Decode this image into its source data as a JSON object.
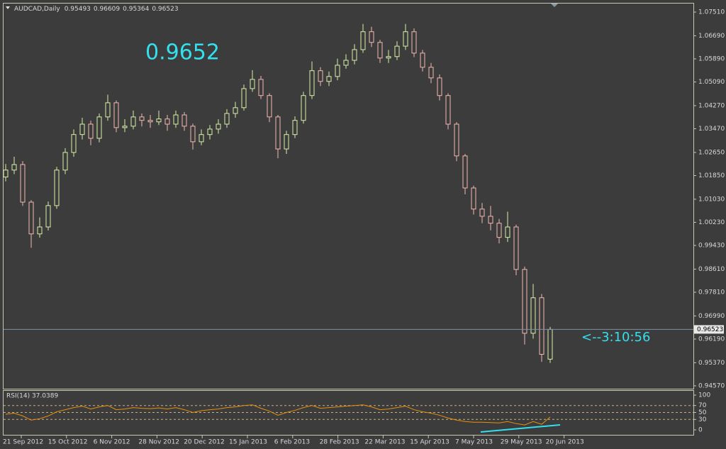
{
  "chart_data": {
    "type": "candlestick",
    "title": "AUDCAD,Daily",
    "open": [
      1.018,
      1.0204,
      1.0223,
      1.0093,
      0.9983,
      1.0007,
      1.0081,
      1.0204,
      1.0265,
      1.0327,
      1.0363,
      1.0314,
      1.0388,
      1.0437,
      1.0351,
      1.0356,
      1.0388,
      1.0376,
      1.0371,
      1.0381,
      1.0363,
      1.0395,
      1.0356,
      1.0302,
      1.0327,
      1.0346,
      1.0363,
      1.04,
      1.042,
      1.0486,
      1.0518,
      1.0462,
      1.0388,
      1.0277,
      1.0327,
      1.0376,
      1.0462,
      1.0548,
      1.0511,
      1.0528,
      1.0567,
      1.0584,
      1.0621,
      1.0683,
      1.0646,
      1.0592,
      1.0597,
      1.0633,
      1.0683,
      1.0609,
      1.056,
      1.0523,
      1.0462,
      1.0363,
      1.0253,
      1.0142,
      1.0069,
      1.0044,
      1.002,
      0.9971,
      1.0007,
      0.986,
      0.9639,
      0.9762,
      0.95493
    ],
    "high": [
      1.0225,
      1.025,
      1.0235,
      1.01,
      1.004,
      1.0095,
      1.0215,
      1.028,
      1.0345,
      1.0385,
      1.0375,
      1.04,
      1.0465,
      1.0445,
      1.038,
      1.041,
      1.04,
      1.0395,
      1.041,
      1.0395,
      1.041,
      1.0405,
      1.0365,
      1.0345,
      1.036,
      1.038,
      1.0415,
      1.044,
      1.05,
      1.055,
      1.053,
      1.047,
      1.0395,
      1.034,
      1.039,
      1.0475,
      1.058,
      1.056,
      1.0545,
      1.059,
      1.0605,
      1.064,
      1.071,
      1.07,
      1.0655,
      1.062,
      1.065,
      1.071,
      1.0695,
      1.062,
      1.0575,
      1.0535,
      1.047,
      1.037,
      1.026,
      1.015,
      1.009,
      1.008,
      1.0035,
      1.006,
      1.0015,
      0.987,
      0.981,
      0.9775,
      0.96609
    ],
    "low": [
      1.0165,
      1.019,
      1.008,
      0.9935,
      0.997,
      0.9995,
      1.007,
      1.019,
      1.025,
      1.031,
      1.029,
      1.03,
      1.0375,
      1.0335,
      1.0335,
      1.0345,
      1.0355,
      1.035,
      1.036,
      1.034,
      1.035,
      1.034,
      1.0275,
      1.029,
      1.031,
      1.033,
      1.035,
      1.0385,
      1.041,
      1.0475,
      1.045,
      1.037,
      1.0245,
      1.026,
      1.0315,
      1.0365,
      1.045,
      1.0495,
      1.0495,
      1.0515,
      1.0555,
      1.057,
      1.061,
      1.063,
      1.0575,
      1.0575,
      1.0585,
      1.062,
      1.0595,
      1.0545,
      1.0505,
      1.0445,
      1.0345,
      1.0235,
      1.012,
      1.005,
      1.002,
      0.9995,
      0.995,
      0.9955,
      0.984,
      0.96,
      0.962,
      0.954,
      0.95364
    ],
    "close": [
      1.0204,
      1.0223,
      1.0093,
      0.9983,
      1.0007,
      1.0081,
      1.0204,
      1.0265,
      1.0327,
      1.0363,
      1.0314,
      1.0388,
      1.0437,
      1.0351,
      1.0356,
      1.0388,
      1.0376,
      1.0371,
      1.0381,
      1.0363,
      1.0395,
      1.0356,
      1.0302,
      1.0327,
      1.0346,
      1.0363,
      1.04,
      1.042,
      1.0486,
      1.0518,
      1.0462,
      1.0388,
      1.0277,
      1.0327,
      1.0376,
      1.0462,
      1.0548,
      1.0511,
      1.0528,
      1.0567,
      1.0584,
      1.0621,
      1.0683,
      1.0646,
      1.0592,
      1.0597,
      1.0633,
      1.0683,
      1.0609,
      1.056,
      1.0523,
      1.0462,
      1.0363,
      1.0253,
      1.0142,
      1.0069,
      1.0044,
      1.002,
      0.9971,
      1.0007,
      0.986,
      0.9639,
      0.9762,
      0.9566,
      0.96523
    ],
    "ylim": [
      0.9447,
      1.0783
    ],
    "yticks": [
      {
        "value": 1.0751,
        "label": "1.07510"
      },
      {
        "value": 1.0669,
        "label": "1.06690"
      },
      {
        "value": 1.0589,
        "label": "1.05890"
      },
      {
        "value": 1.0509,
        "label": "1.05090"
      },
      {
        "value": 1.0427,
        "label": "1.04270"
      },
      {
        "value": 1.0347,
        "label": "1.03470"
      },
      {
        "value": 1.0265,
        "label": "1.02650"
      },
      {
        "value": 1.0185,
        "label": "1.01850"
      },
      {
        "value": 1.0103,
        "label": "1.01030"
      },
      {
        "value": 1.0023,
        "label": "1.00230"
      },
      {
        "value": 0.9943,
        "label": "0.99430"
      },
      {
        "value": 0.9861,
        "label": "0.98610"
      },
      {
        "value": 0.9781,
        "label": "0.97810"
      },
      {
        "value": 0.9699,
        "label": "0.96990"
      },
      {
        "value": 0.9619,
        "label": "0.96190"
      },
      {
        "value": 0.9537,
        "label": "0.95370"
      },
      {
        "value": 0.9457,
        "label": "0.94570"
      }
    ],
    "up_color": "#d9f0a8",
    "down_color": "#f4b8b0",
    "date_labels": [
      "21 Sep 2012",
      "15 Oct 2012",
      "6 Nov 2012",
      "28 Nov 2012",
      "20 Dec 2012",
      "15 Jan 2013",
      "6 Feb 2013",
      "28 Feb 2013",
      "22 Mar 2013",
      "15 Apr 2013",
      "7 May 2013",
      "29 May 2013",
      "20 Jun 2013"
    ],
    "annotations": [
      "0.9652",
      "<--3:10:56"
    ],
    "rsi": {
      "title": "RSI(14) 37.0389",
      "color": "#e8900a",
      "ylim": [
        0,
        100
      ],
      "yticks": [
        100,
        70,
        50,
        30,
        0
      ],
      "values": [
        45,
        48,
        40,
        28,
        32,
        40,
        52,
        58,
        64,
        68,
        60,
        66,
        70,
        58,
        60,
        64,
        62,
        61,
        63,
        60,
        64,
        58,
        50,
        55,
        58,
        60,
        64,
        66,
        70,
        72,
        62,
        54,
        42,
        50,
        56,
        64,
        70,
        62,
        64,
        66,
        68,
        70,
        72,
        66,
        58,
        60,
        64,
        68,
        58,
        52,
        48,
        42,
        34,
        28,
        24,
        22,
        22,
        21,
        20,
        24,
        18,
        14,
        24,
        16,
        37.0389
      ]
    }
  }
}
